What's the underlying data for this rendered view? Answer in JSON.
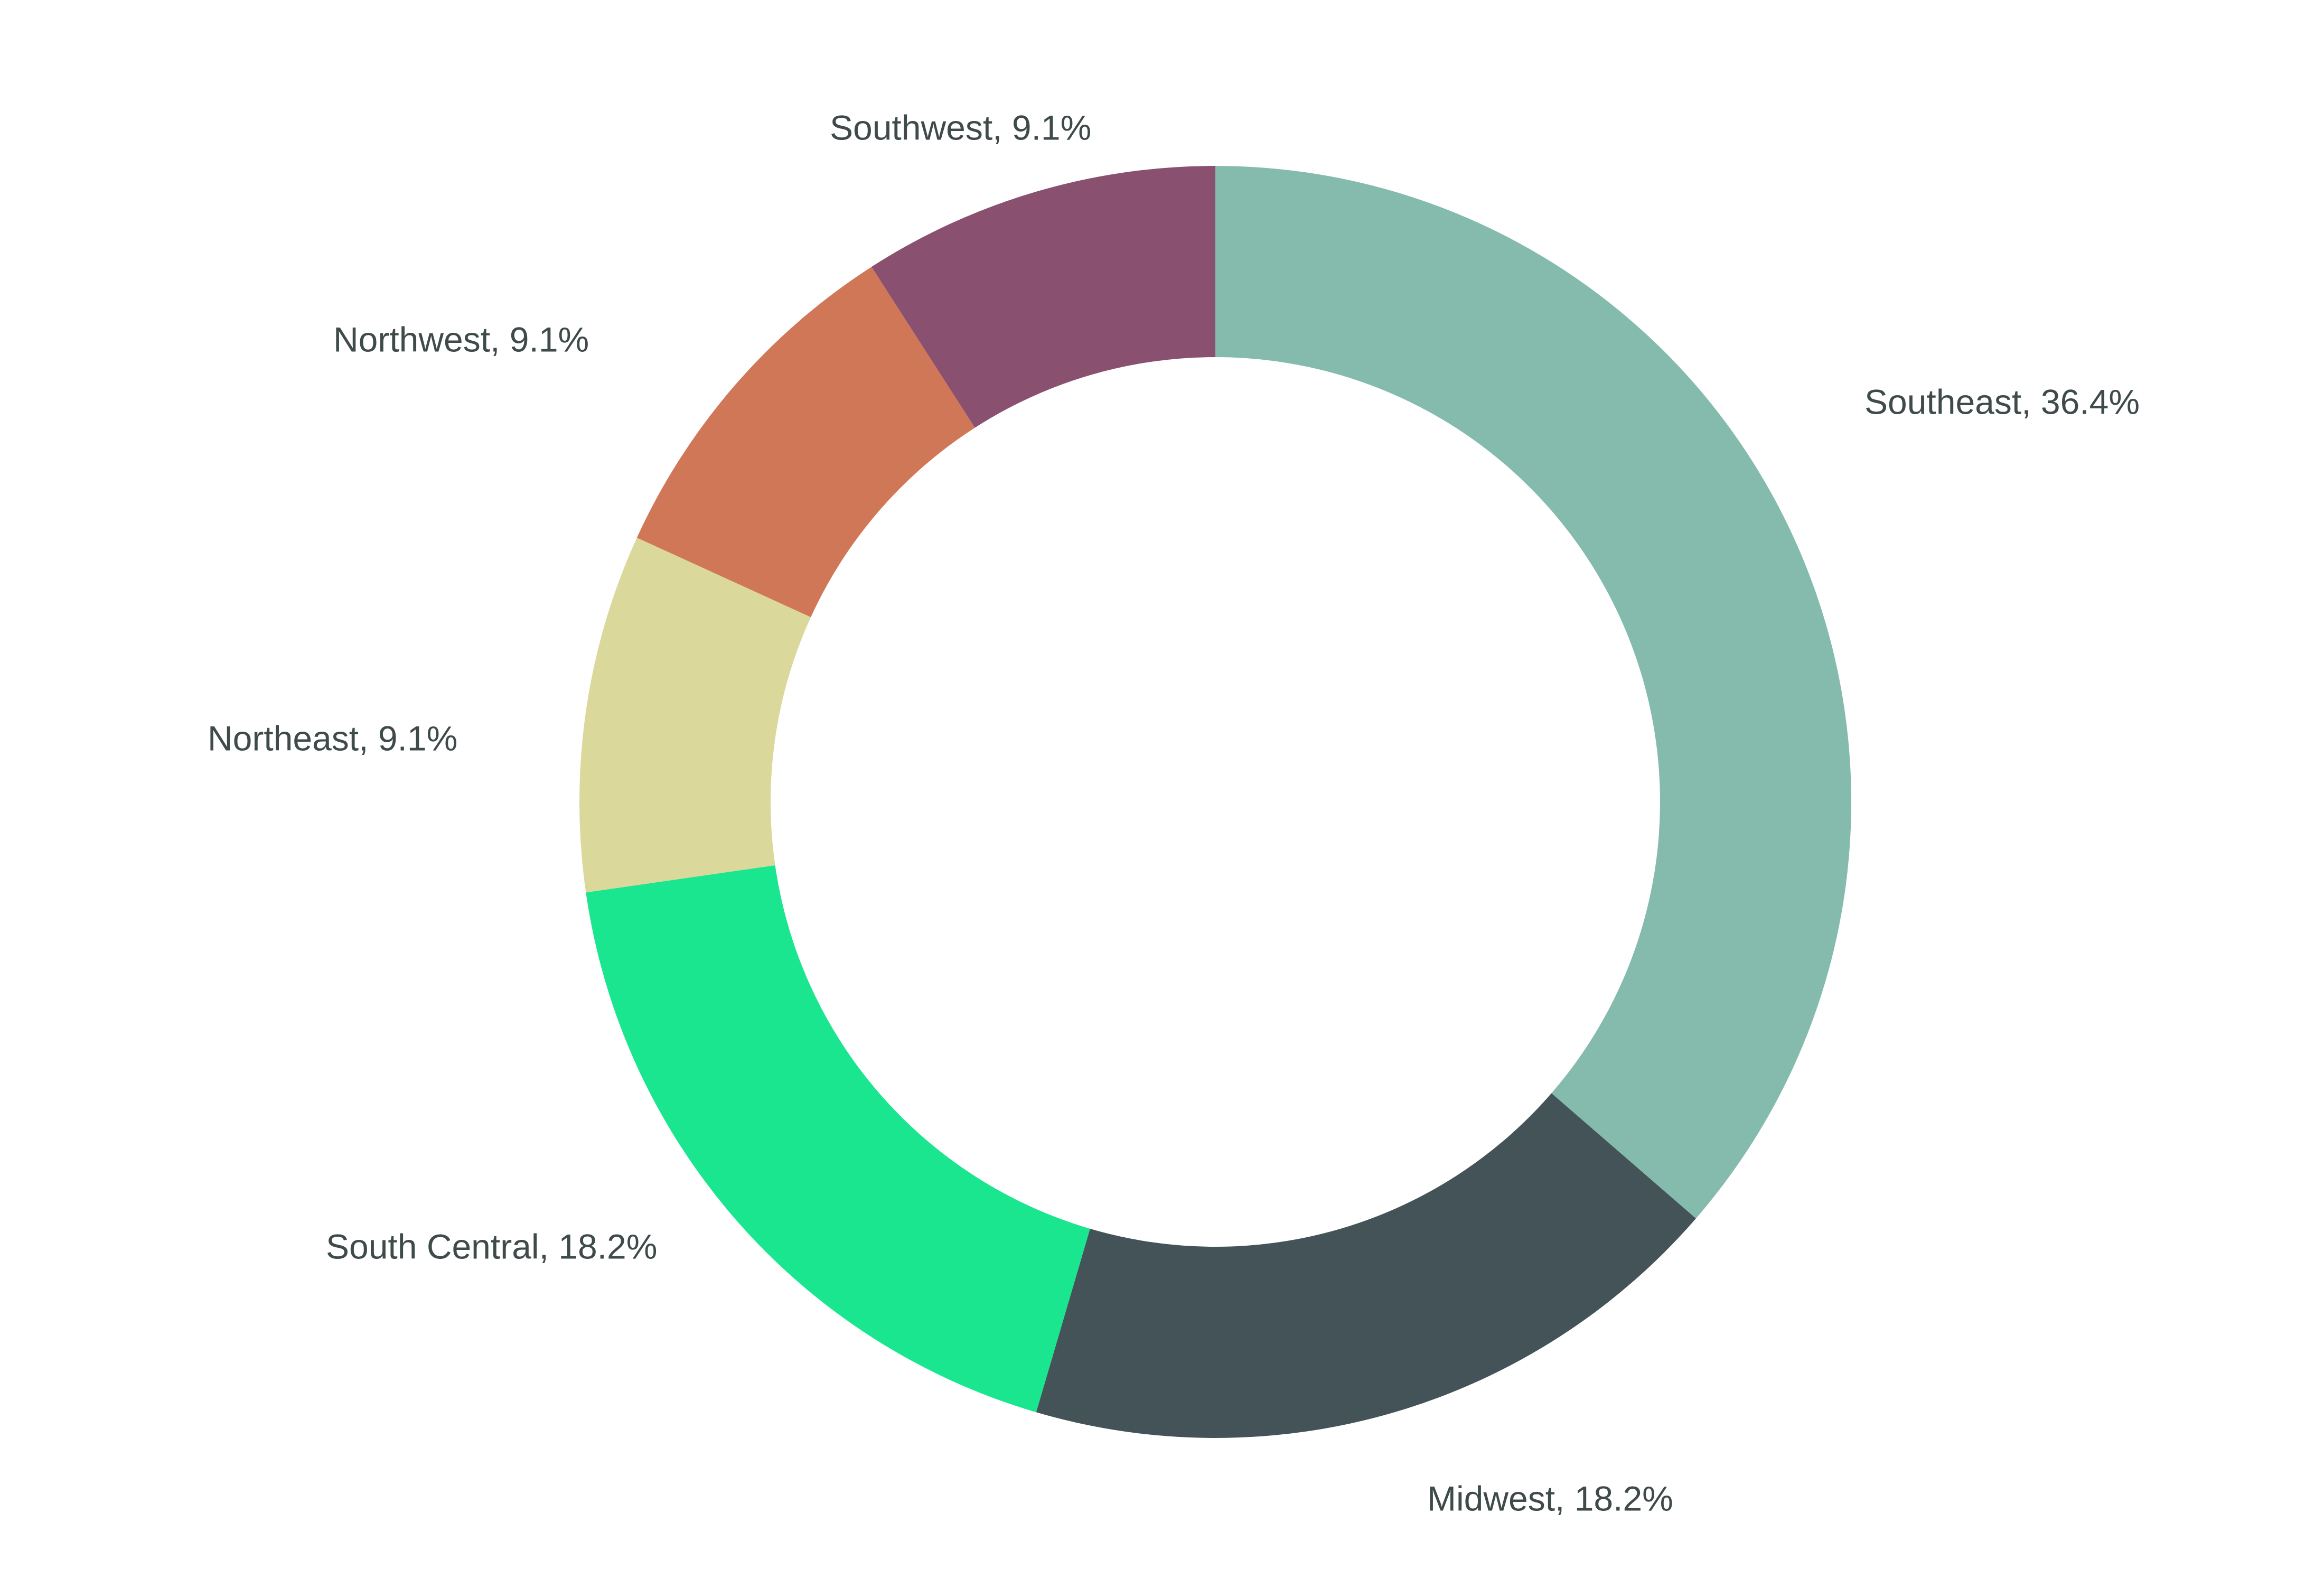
{
  "chart_data": {
    "type": "pie",
    "variant": "donut",
    "title": "",
    "categories": [
      "Southeast",
      "Midwest",
      "South Central",
      "Northeast",
      "Northwest",
      "Southwest"
    ],
    "values": [
      36.4,
      18.2,
      18.2,
      9.1,
      9.1,
      9.1
    ],
    "labels": [
      "Southeast, 36.4%",
      "Midwest, 18.2%",
      "South Central, 18.2%",
      "Northeast, 9.1%",
      "Northwest, 9.1%",
      "Southwest, 9.1%"
    ],
    "colors": [
      "#84bbad",
      "#435357",
      "#19e68f",
      "#dbd89b",
      "#d07758",
      "#8a5070"
    ],
    "start_angle": "top",
    "direction": "clockwise",
    "legend": "none"
  }
}
